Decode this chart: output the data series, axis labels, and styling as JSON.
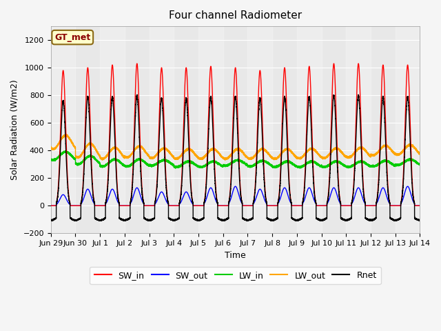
{
  "title": "Four channel Radiometer",
  "xlabel": "Time",
  "ylabel": "Solar Radiation (W/m2)",
  "ylim": [
    -200,
    1300
  ],
  "yticks": [
    -200,
    0,
    200,
    400,
    600,
    800,
    1000,
    1200
  ],
  "annotation": "GT_met",
  "annotation_color": "#8B0000",
  "annotation_bg": "#FFFFCC",
  "annotation_edge": "#8B6914",
  "fig_bg": "#F5F5F5",
  "plot_bg": "#E8E8E8",
  "colors": {
    "SW_in": "#FF0000",
    "SW_out": "#0000FF",
    "LW_in": "#00CC00",
    "LW_out": "#FFA500",
    "Rnet": "#000000"
  },
  "tick_labels": [
    "Jun 29",
    "Jun 30",
    "Jul 1",
    "Jul 2",
    "Jul 3",
    "Jul 4",
    "Jul 5",
    "Jul 6",
    "Jul 7",
    "Jul 8",
    "Jul 9",
    "Jul 10",
    "Jul 11",
    "Jul 12",
    "Jul 13",
    "Jul 14"
  ],
  "linewidth": 1.0
}
